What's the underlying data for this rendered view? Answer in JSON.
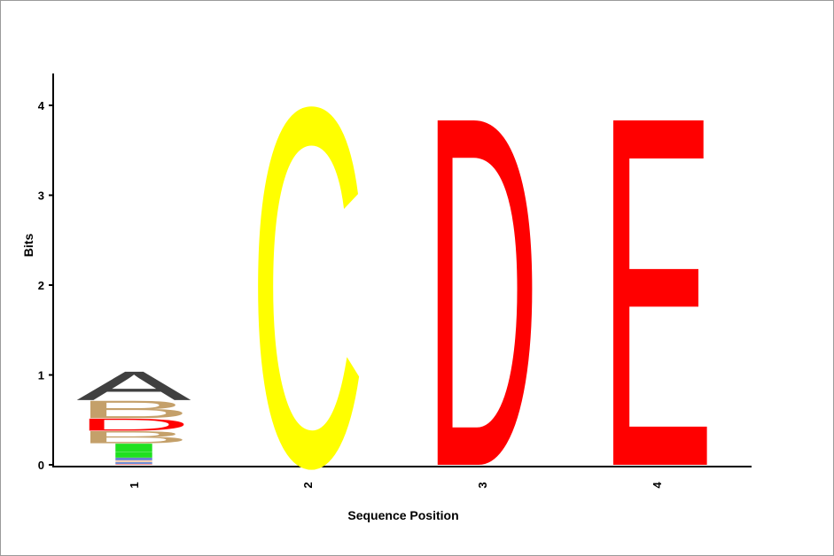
{
  "chart_data": {
    "type": "sequence-logo",
    "xlabel": "Sequence Position",
    "ylabel": "Bits",
    "ylim": [
      0,
      4.3
    ],
    "y_ticks": [
      "0",
      "1",
      "2",
      "3",
      "4"
    ],
    "grid": false,
    "positions": [
      {
        "label": "1",
        "stack": [
          {
            "letter": "-",
            "bits": 0.01,
            "color": "#ff9090"
          },
          {
            "letter": "-",
            "bits": 0.02,
            "color": "#6f8fd8"
          },
          {
            "letter": "-",
            "bits": 0.02,
            "color": "#ffd0b0"
          },
          {
            "letter": "-",
            "bits": 0.03,
            "color": "#6a7fd0"
          },
          {
            "letter": "-",
            "bits": 0.06,
            "color": "#20e020"
          },
          {
            "letter": "-",
            "bits": 0.1,
            "color": "#20e020"
          },
          {
            "letter": "B",
            "bits": 0.14,
            "color": "#c4a06a"
          },
          {
            "letter": "D",
            "bits": 0.14,
            "color": "#ff0000"
          },
          {
            "letter": "B",
            "bits": 0.2,
            "color": "#c4a06a"
          },
          {
            "letter": "A",
            "bits": 0.33,
            "color": "#404040"
          }
        ]
      },
      {
        "label": "2",
        "stack": [
          {
            "letter": "C",
            "bits": 4.1,
            "color": "#ffff00"
          }
        ]
      },
      {
        "label": "3",
        "stack": [
          {
            "letter": "D",
            "bits": 4.0,
            "color": "#ff0000"
          }
        ]
      },
      {
        "label": "4",
        "stack": [
          {
            "letter": "E",
            "bits": 4.0,
            "color": "#ff0000"
          }
        ]
      }
    ]
  }
}
